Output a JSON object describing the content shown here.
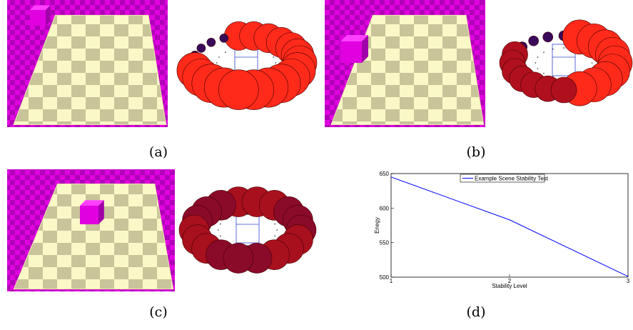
{
  "captions": [
    "(a)",
    "(b)",
    "(c)",
    "(d)"
  ],
  "chart_data": {
    "type": "line",
    "x": [
      1,
      2,
      3
    ],
    "series": [
      {
        "name": "Example Scene Stability Test",
        "color": "#0000ff",
        "values": [
          645,
          583,
          501
        ]
      }
    ],
    "xlim": [
      1,
      3
    ],
    "xticks": [
      1,
      2,
      3
    ],
    "ylim": [
      500,
      650
    ],
    "yticks": [
      500,
      550,
      600,
      650
    ],
    "xlabel": "Stability Level",
    "ylabel": "Enegy"
  }
}
